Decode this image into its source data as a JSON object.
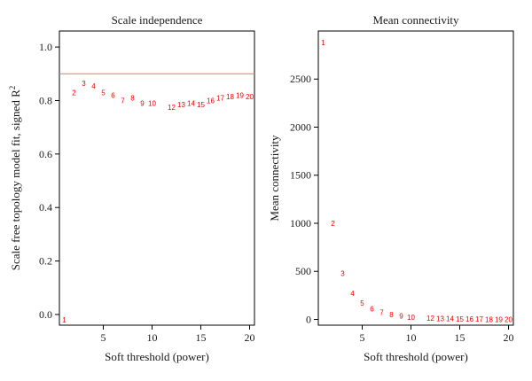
{
  "colors": {
    "points": "#ee0000",
    "cutoff": "#f08080",
    "axis": "#000000"
  },
  "chart_data": [
    {
      "type": "scatter",
      "title": "Scale independence",
      "xlabel": "Soft threshold (power)",
      "ylabel": "Scale free topology model fit, signed R",
      "ylabel_sup": "2",
      "xlim": [
        0.5,
        20.5
      ],
      "ylim": [
        -0.04,
        1.06
      ],
      "xticks": [
        5,
        10,
        15,
        20
      ],
      "yticks": [
        0.0,
        0.2,
        0.4,
        0.6,
        0.8,
        1.0
      ],
      "ytick_labels": [
        "0.0",
        "0.2",
        "0.4",
        "0.6",
        "0.8",
        "1.0"
      ],
      "hline": 0.9,
      "points": [
        {
          "x": 1,
          "y": -0.02,
          "label": "1"
        },
        {
          "x": 2,
          "y": 0.83,
          "label": "2"
        },
        {
          "x": 3,
          "y": 0.865,
          "label": "3"
        },
        {
          "x": 4,
          "y": 0.855,
          "label": "4"
        },
        {
          "x": 5,
          "y": 0.83,
          "label": "5"
        },
        {
          "x": 6,
          "y": 0.82,
          "label": "6"
        },
        {
          "x": 7,
          "y": 0.8,
          "label": "7"
        },
        {
          "x": 8,
          "y": 0.81,
          "label": "8"
        },
        {
          "x": 9,
          "y": 0.79,
          "label": "9"
        },
        {
          "x": 10,
          "y": 0.79,
          "label": "10"
        },
        {
          "x": 12,
          "y": 0.775,
          "label": "12"
        },
        {
          "x": 13,
          "y": 0.785,
          "label": "13"
        },
        {
          "x": 14,
          "y": 0.79,
          "label": "14"
        },
        {
          "x": 15,
          "y": 0.785,
          "label": "15"
        },
        {
          "x": 16,
          "y": 0.8,
          "label": "16"
        },
        {
          "x": 17,
          "y": 0.81,
          "label": "17"
        },
        {
          "x": 18,
          "y": 0.815,
          "label": "18"
        },
        {
          "x": 19,
          "y": 0.82,
          "label": "19"
        },
        {
          "x": 20,
          "y": 0.815,
          "label": "20"
        }
      ]
    },
    {
      "type": "scatter",
      "title": "Mean connectivity",
      "xlabel": "Soft threshold (power)",
      "ylabel": "Mean connectivity",
      "ylabel_sup": "",
      "xlim": [
        0.5,
        20.5
      ],
      "ylim": [
        -60,
        3000
      ],
      "xticks": [
        5,
        10,
        15,
        20
      ],
      "yticks": [
        0,
        500,
        1000,
        1500,
        2000,
        2500
      ],
      "ytick_labels": [
        "0",
        "500",
        "1000",
        "1500",
        "2000",
        "2500"
      ],
      "hline": null,
      "points": [
        {
          "x": 1,
          "y": 2880,
          "label": "1"
        },
        {
          "x": 2,
          "y": 1000,
          "label": "2"
        },
        {
          "x": 3,
          "y": 480,
          "label": "3"
        },
        {
          "x": 4,
          "y": 270,
          "label": "4"
        },
        {
          "x": 5,
          "y": 170,
          "label": "5"
        },
        {
          "x": 6,
          "y": 110,
          "label": "6"
        },
        {
          "x": 7,
          "y": 75,
          "label": "7"
        },
        {
          "x": 8,
          "y": 50,
          "label": "8"
        },
        {
          "x": 9,
          "y": 35,
          "label": "9"
        },
        {
          "x": 10,
          "y": 25,
          "label": "10"
        },
        {
          "x": 12,
          "y": 12,
          "label": "12"
        },
        {
          "x": 13,
          "y": 9,
          "label": "13"
        },
        {
          "x": 14,
          "y": 7,
          "label": "14"
        },
        {
          "x": 15,
          "y": 5,
          "label": "15"
        },
        {
          "x": 16,
          "y": 4,
          "label": "16"
        },
        {
          "x": 17,
          "y": 3,
          "label": "17"
        },
        {
          "x": 18,
          "y": 2,
          "label": "18"
        },
        {
          "x": 19,
          "y": 2,
          "label": "19"
        },
        {
          "x": 20,
          "y": 1,
          "label": "20"
        }
      ]
    }
  ]
}
